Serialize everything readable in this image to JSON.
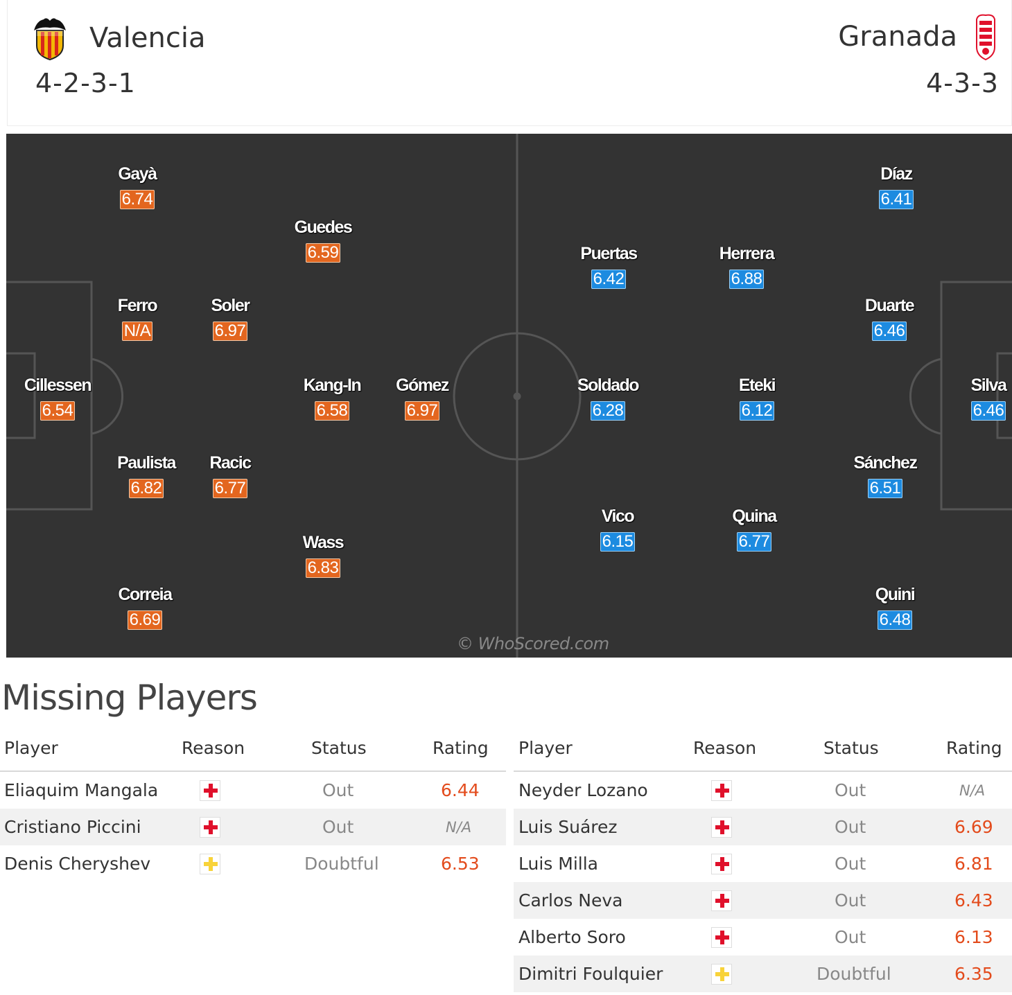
{
  "home": {
    "name": "Valencia",
    "formation": "4-2-3-1",
    "crest_icon": "valencia-bat-crest-icon",
    "color": "#e3661f",
    "players": [
      {
        "name": "Gayà",
        "rating": "6.74"
      },
      {
        "name": "Guedes",
        "rating": "6.59"
      },
      {
        "name": "Ferro",
        "rating": "N/A"
      },
      {
        "name": "Soler",
        "rating": "6.97"
      },
      {
        "name": "Cillessen",
        "rating": "6.54"
      },
      {
        "name": "Kang-In",
        "rating": "6.58"
      },
      {
        "name": "Gómez",
        "rating": "6.97"
      },
      {
        "name": "Paulista",
        "rating": "6.82"
      },
      {
        "name": "Racic",
        "rating": "6.77"
      },
      {
        "name": "Wass",
        "rating": "6.83"
      },
      {
        "name": "Correia",
        "rating": "6.69"
      }
    ]
  },
  "away": {
    "name": "Granada",
    "formation": "4-3-3",
    "crest_icon": "granada-crest-icon",
    "color": "#1d8be0",
    "players": [
      {
        "name": "Díaz",
        "rating": "6.41"
      },
      {
        "name": "Puertas",
        "rating": "6.42"
      },
      {
        "name": "Herrera",
        "rating": "6.88"
      },
      {
        "name": "Duarte",
        "rating": "6.46"
      },
      {
        "name": "Soldado",
        "rating": "6.28"
      },
      {
        "name": "Eteki",
        "rating": "6.12"
      },
      {
        "name": "Silva",
        "rating": "6.46"
      },
      {
        "name": "Sánchez",
        "rating": "6.51"
      },
      {
        "name": "Vico",
        "rating": "6.15"
      },
      {
        "name": "Quina",
        "rating": "6.77"
      },
      {
        "name": "Quini",
        "rating": "6.48"
      }
    ]
  },
  "watermark": "© WhoScored.com",
  "missing": {
    "title": "Missing Players",
    "headers": {
      "player": "Player",
      "reason": "Reason",
      "status": "Status",
      "rating": "Rating"
    },
    "home": [
      {
        "player": "Eliaquim Mangala",
        "reason": "injury",
        "status": "Out",
        "rating": "6.44"
      },
      {
        "player": "Cristiano Piccini",
        "reason": "injury",
        "status": "Out",
        "rating": "N/A"
      },
      {
        "player": "Denis Cheryshev",
        "reason": "doubtful",
        "status": "Doubtful",
        "rating": "6.53"
      }
    ],
    "away": [
      {
        "player": "Neyder Lozano",
        "reason": "injury",
        "status": "Out",
        "rating": "N/A"
      },
      {
        "player": "Luis Suárez",
        "reason": "injury",
        "status": "Out",
        "rating": "6.69"
      },
      {
        "player": "Luis Milla",
        "reason": "injury",
        "status": "Out",
        "rating": "6.81"
      },
      {
        "player": "Carlos Neva",
        "reason": "injury",
        "status": "Out",
        "rating": "6.43"
      },
      {
        "player": "Alberto Soro",
        "reason": "injury",
        "status": "Out",
        "rating": "6.13"
      },
      {
        "player": "Dimitri Foulquier",
        "reason": "doubtful",
        "status": "Doubtful",
        "rating": "6.35"
      }
    ]
  }
}
